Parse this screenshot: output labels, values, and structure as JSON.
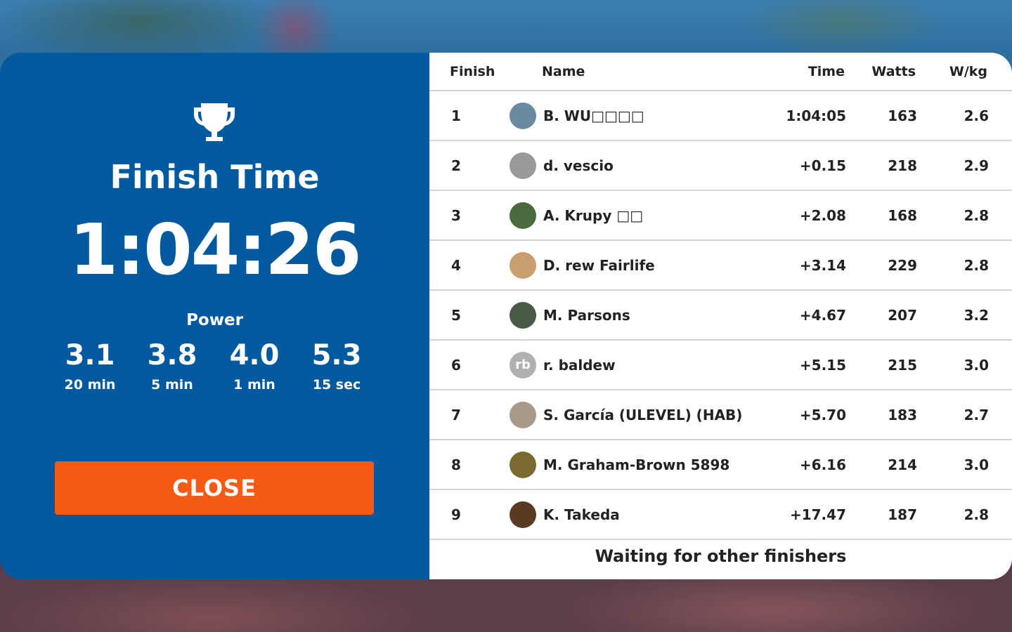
{
  "finish": {
    "label": "Finish Time",
    "time": "1:04:26",
    "power_label": "Power",
    "power": [
      {
        "value": "3.1",
        "duration": "20 min"
      },
      {
        "value": "3.8",
        "duration": "5 min"
      },
      {
        "value": "4.0",
        "duration": "1 min"
      },
      {
        "value": "5.3",
        "duration": "15 sec"
      }
    ],
    "close_label": "CLOSE",
    "close_color": "#f65a15",
    "panel_color": "#0159a0"
  },
  "table": {
    "headers": {
      "finish": "Finish",
      "name": "Name",
      "time": "Time",
      "watts": "Watts",
      "wkg": "W/kg"
    },
    "rows": [
      {
        "rank": "1",
        "name": "B. WU□□□□",
        "time": "1:04:05",
        "watts": "163",
        "wkg": "2.6",
        "avatar": "#6a8aa0"
      },
      {
        "rank": "2",
        "name": "d. vescio",
        "time": "+0.15",
        "watts": "218",
        "wkg": "2.9",
        "avatar": "#9a9a9a"
      },
      {
        "rank": "3",
        "name": "A.  Krupy □□",
        "time": "+2.08",
        "watts": "168",
        "wkg": "2.8",
        "avatar": "#4a6a40"
      },
      {
        "rank": "4",
        "name": "D. rew Fairlife",
        "time": "+3.14",
        "watts": "229",
        "wkg": "2.8",
        "avatar": "#c8a070"
      },
      {
        "rank": "5",
        "name": "M. Parsons",
        "time": "+4.67",
        "watts": "207",
        "wkg": "3.2",
        "avatar": "#4a5a48"
      },
      {
        "rank": "6",
        "name": "r. baldew",
        "time": "+5.15",
        "watts": "215",
        "wkg": "3.0",
        "avatar": "#b0b0b0",
        "initials": "rb"
      },
      {
        "rank": "7",
        "name": "S. García (ULEVEL) (HAB)",
        "time": "+5.70",
        "watts": "183",
        "wkg": "2.7",
        "avatar": "#a89888"
      },
      {
        "rank": "8",
        "name": "M. Graham-Brown 5898",
        "time": "+6.16",
        "watts": "214",
        "wkg": "3.0",
        "avatar": "#7a6a30"
      },
      {
        "rank": "9",
        "name": "K. Takeda",
        "time": "+17.47",
        "watts": "187",
        "wkg": "2.8",
        "avatar": "#5a3a20"
      }
    ],
    "footer": "Waiting for other finishers"
  }
}
